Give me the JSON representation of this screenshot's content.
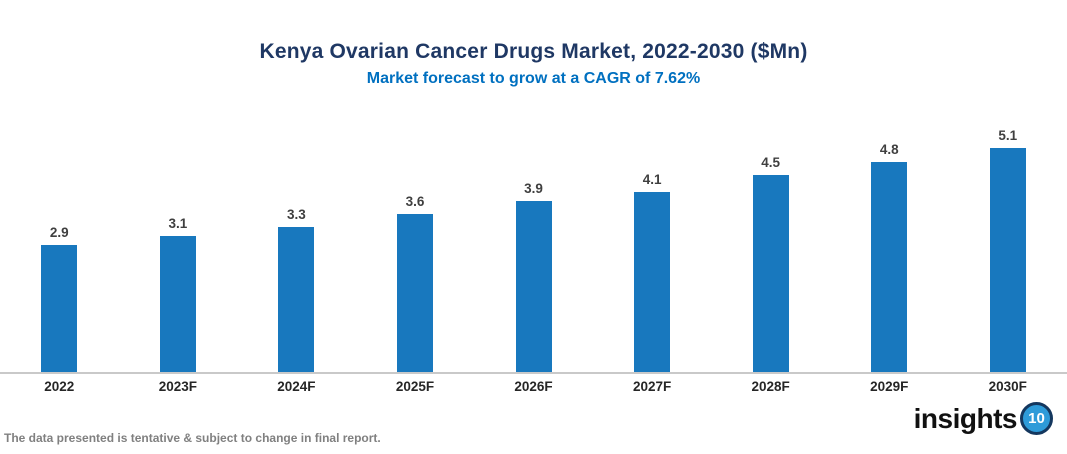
{
  "chart_data": {
    "type": "bar",
    "title": "Kenya Ovarian Cancer Drugs Market, 2022-2030 ($Mn)",
    "subtitle": "Market forecast to grow at a CAGR of 7.62%",
    "categories": [
      "2022",
      "2023F",
      "2024F",
      "2025F",
      "2026F",
      "2027F",
      "2028F",
      "2029F",
      "2030F"
    ],
    "values": [
      2.9,
      3.1,
      3.3,
      3.6,
      3.9,
      4.1,
      4.5,
      4.8,
      5.1
    ],
    "xlabel": "",
    "ylabel": "",
    "ylim": [
      0,
      6
    ],
    "grid": false,
    "legend": "none",
    "data_labels": true
  },
  "footer": {
    "note": "The data presented is tentative & subject to change in final report.",
    "logo_text": "insights",
    "logo_badge": "10"
  },
  "colors": {
    "title": "#1F3864",
    "subtitle": "#0070C0",
    "bar": "#1878BE",
    "axis_line": "#C9C9C9",
    "value_label": "#3F3F3F",
    "tick_label": "#262626",
    "footnote": "#808080",
    "logo_badge_fill": "#2E9BD9",
    "logo_badge_ring": "#14375E"
  }
}
